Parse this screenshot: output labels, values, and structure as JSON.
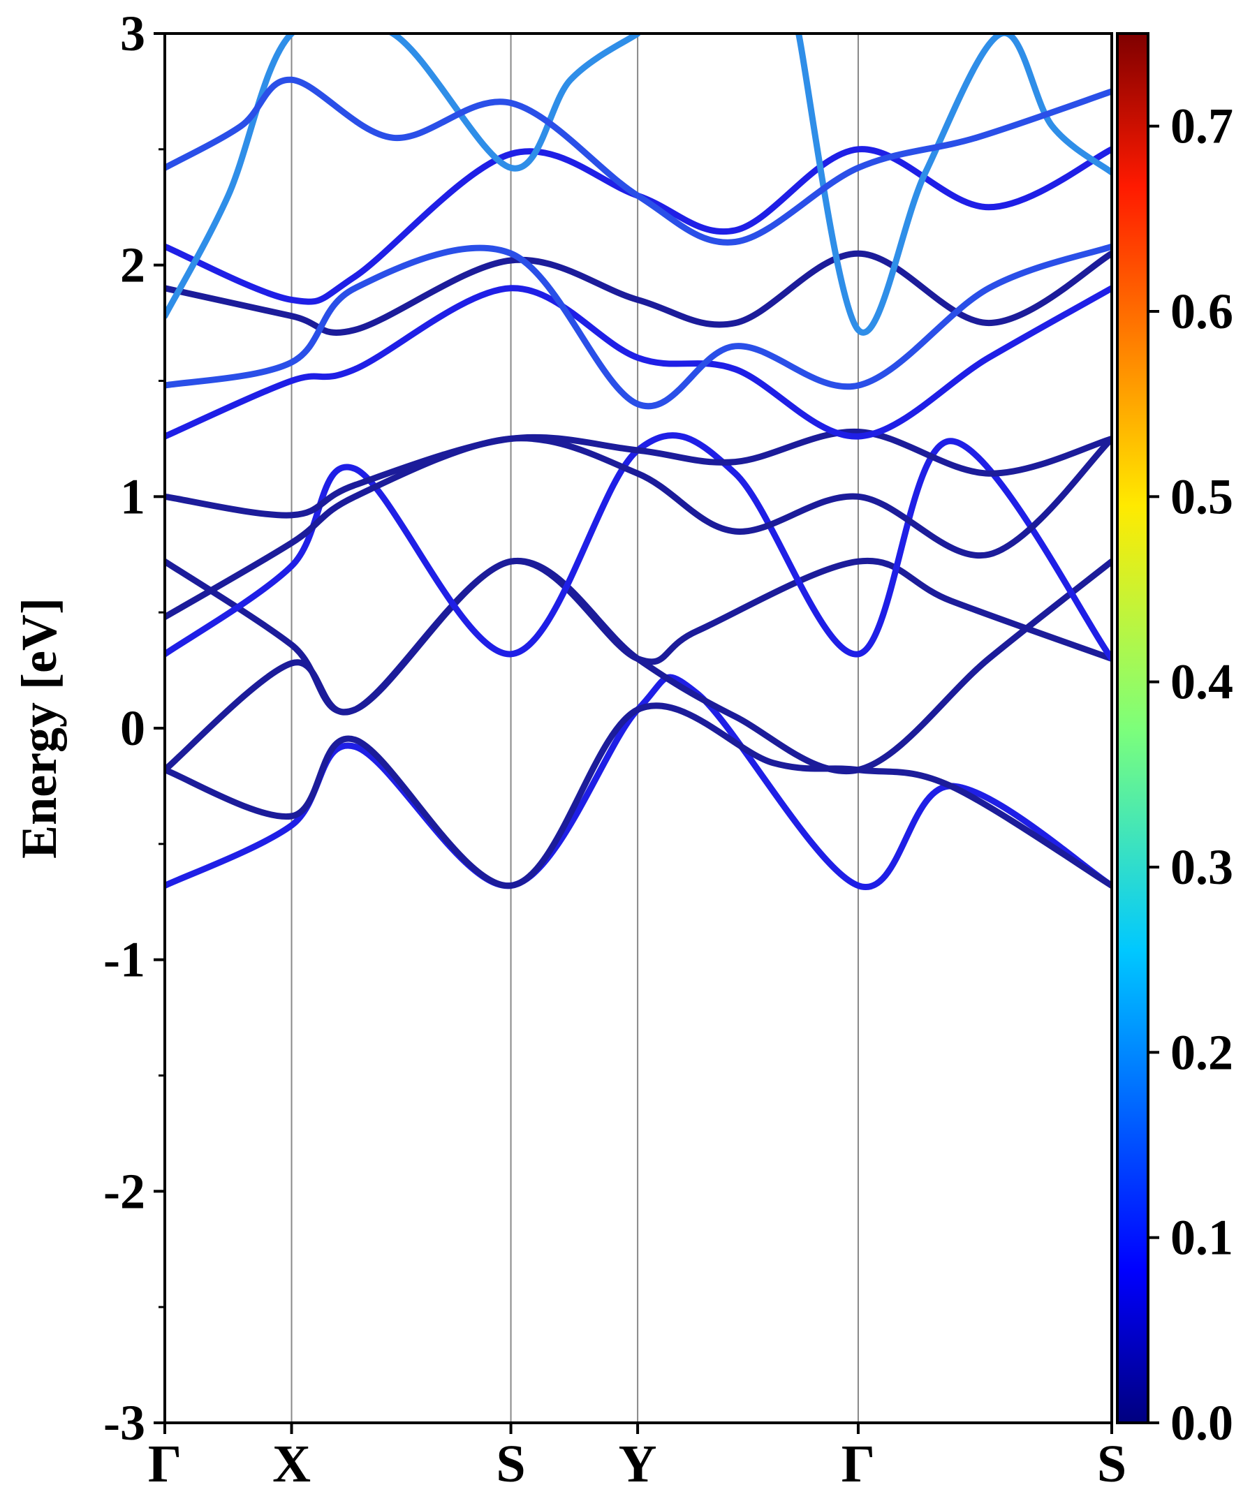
{
  "chart_data": {
    "type": "line",
    "title": "",
    "xlabel": "",
    "ylabel": "Energy [eV]",
    "ylim": [
      -3,
      3
    ],
    "yticks": [
      {
        "value": 3,
        "label": "3"
      },
      {
        "value": 2,
        "label": "2"
      },
      {
        "value": 1,
        "label": "1"
      },
      {
        "value": 0,
        "label": "0"
      },
      {
        "value": -1,
        "label": "-1"
      },
      {
        "value": -2,
        "label": "-2"
      },
      {
        "value": -3,
        "label": "-3"
      }
    ],
    "kpoints": [
      {
        "label": "Γ",
        "x": 0
      },
      {
        "label": "X",
        "x": 1
      },
      {
        "label": "S",
        "x": 2.73
      },
      {
        "label": "Y",
        "x": 3.73
      },
      {
        "label": "Γ",
        "x": 5.47
      },
      {
        "label": "S",
        "x": 7.47
      }
    ],
    "grid": "vertical lines at high-symmetry points",
    "colorbar": {
      "colormap": "jet",
      "range": [
        0.0,
        0.75
      ],
      "ticks": [
        {
          "value": 0.0,
          "label": "0.0"
        },
        {
          "value": 0.1,
          "label": "0.1"
        },
        {
          "value": 0.2,
          "label": "0.2"
        },
        {
          "value": 0.3,
          "label": "0.3"
        },
        {
          "value": 0.4,
          "label": "0.4"
        },
        {
          "value": 0.5,
          "label": "0.5"
        },
        {
          "value": 0.6,
          "label": "0.6"
        },
        {
          "value": 0.7,
          "label": "0.7"
        }
      ]
    },
    "colors": {
      "deep_blue": "#1c1c9a",
      "blue": "#1f1fe6",
      "mid_blue": "#2a4fe8",
      "light_blue": "#2f8ee8"
    },
    "series": [
      {
        "x": [
          0,
          1,
          1.5,
          2.73,
          3.73,
          4.2,
          5.47,
          6.2,
          7.47
        ],
        "y": [
          -0.68,
          -0.42,
          -0.08,
          -0.68,
          0.08,
          0.15,
          -0.68,
          -0.25,
          -0.68
        ],
        "weight": 0.08
      },
      {
        "x": [
          0,
          1,
          1.5,
          2.73,
          3.73,
          4.8,
          5.47,
          6.2,
          7.47
        ],
        "y": [
          -0.18,
          -0.38,
          -0.05,
          -0.68,
          0.08,
          -0.15,
          -0.18,
          -0.25,
          -0.68
        ],
        "weight": 0.06
      },
      {
        "x": [
          0,
          1,
          1.5,
          2.73,
          3.73,
          4.5,
          5.47,
          6.5,
          7.47
        ],
        "y": [
          -0.18,
          0.28,
          0.08,
          0.72,
          0.3,
          0.05,
          -0.18,
          0.3,
          0.72
        ],
        "weight": 0.04
      },
      {
        "x": [
          0,
          1,
          1.5,
          2.73,
          3.73,
          4.2,
          5.47,
          6.2,
          7.47
        ],
        "y": [
          0.72,
          0.36,
          0.08,
          0.72,
          0.3,
          0.42,
          0.72,
          0.55,
          0.3
        ],
        "weight": 0.05
      },
      {
        "x": [
          0,
          1,
          1.5,
          2.73,
          3.73,
          4.5,
          5.47,
          6.2,
          7.47
        ],
        "y": [
          0.32,
          0.7,
          1.12,
          0.32,
          1.2,
          1.1,
          0.32,
          1.24,
          0.3
        ],
        "weight": 0.09
      },
      {
        "x": [
          0,
          1,
          1.5,
          2.73,
          3.73,
          4.5,
          5.47,
          6.5,
          7.47
        ],
        "y": [
          0.48,
          0.8,
          1.0,
          1.25,
          1.1,
          0.85,
          1.0,
          0.75,
          1.25
        ],
        "weight": 0.05
      },
      {
        "x": [
          0,
          1,
          1.5,
          2.73,
          3.73,
          4.5,
          5.47,
          6.5,
          7.47
        ],
        "y": [
          1.0,
          0.92,
          1.05,
          1.25,
          1.2,
          1.15,
          1.28,
          1.1,
          1.25
        ],
        "weight": 0.06
      },
      {
        "x": [
          0,
          1,
          1.5,
          2.73,
          3.73,
          4.5,
          5.47,
          6.5,
          7.47
        ],
        "y": [
          1.26,
          1.5,
          1.55,
          1.9,
          1.6,
          1.55,
          1.26,
          1.6,
          1.9
        ],
        "weight": 0.08
      },
      {
        "x": [
          0,
          1,
          1.5,
          2.73,
          3.73,
          4.5,
          5.47,
          6.5,
          7.47
        ],
        "y": [
          1.9,
          1.78,
          1.72,
          2.02,
          1.85,
          1.75,
          2.05,
          1.75,
          2.05
        ],
        "weight": 0.06
      },
      {
        "x": [
          0,
          1,
          1.5,
          2.73,
          3.73,
          4.5,
          5.47,
          6.5,
          7.47
        ],
        "y": [
          2.08,
          1.85,
          1.95,
          2.48,
          2.3,
          2.15,
          2.5,
          2.25,
          2.5
        ],
        "weight": 0.09
      },
      {
        "x": [
          0,
          1,
          1.5,
          2.73,
          3.73,
          4.5,
          5.47,
          6.5,
          7.47
        ],
        "y": [
          1.48,
          1.58,
          1.9,
          2.05,
          1.4,
          1.65,
          1.48,
          1.9,
          2.08
        ],
        "weight": 0.1
      },
      {
        "x": [
          0,
          0.5,
          1,
          1.8,
          2.73,
          3.2,
          3.73
        ],
        "y": [
          1.78,
          2.3,
          3.0,
          3.0,
          2.42,
          2.8,
          3.0
        ],
        "weight": 0.2
      },
      {
        "x": [
          5.0,
          5.47,
          6.0,
          6.6,
          7.0,
          7.47
        ],
        "y": [
          3.0,
          1.72,
          2.4,
          3.0,
          2.6,
          2.4
        ],
        "weight": 0.22
      },
      {
        "x": [
          0,
          0.6,
          1,
          1.8,
          2.73,
          3.73,
          4.5,
          5.47,
          6.4,
          7.47
        ],
        "y": [
          2.42,
          2.6,
          2.8,
          2.55,
          2.7,
          2.3,
          2.1,
          2.42,
          2.55,
          2.75
        ],
        "weight": 0.14
      }
    ]
  }
}
